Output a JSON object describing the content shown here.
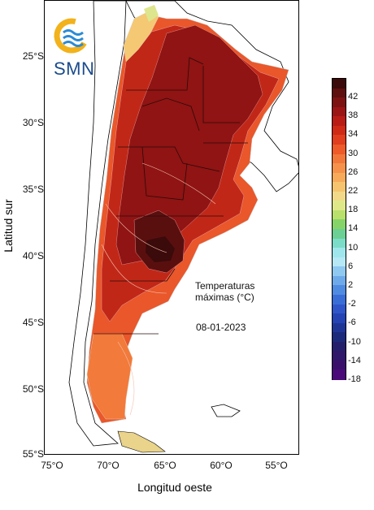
{
  "map": {
    "title_line1": "Temperaturas",
    "title_line2": "máximas (°C)",
    "date": "08-01-2023",
    "x_axis_title": "Longitud oeste",
    "y_axis_title": "Latitud sur",
    "lat_ticks": [
      "25°S",
      "30°S",
      "35°S",
      "40°S",
      "45°S",
      "50°S",
      "55°S"
    ],
    "lon_ticks": [
      "75°O",
      "70°O",
      "65°O",
      "60°O",
      "55°O"
    ],
    "logo_text": "SMN"
  },
  "colorbar": {
    "labels": [
      "42",
      "38",
      "34",
      "30",
      "26",
      "22",
      "18",
      "14",
      "10",
      "6",
      "2",
      "-2",
      "-6",
      "-10",
      "-14",
      "-18"
    ],
    "colors": [
      "#3b0a0a",
      "#5e0f0f",
      "#7d1212",
      "#9b1515",
      "#b81c14",
      "#cf2a16",
      "#e03e1e",
      "#ee5a2a",
      "#f2773a",
      "#f5914b",
      "#f6aa5a",
      "#f6c46e",
      "#f2d98a",
      "#dfe889",
      "#b8e06a",
      "#86d469",
      "#6ccf93",
      "#7bdcc8",
      "#9ee6ec",
      "#b6e8f6",
      "#8fc8f0",
      "#6eaaea",
      "#4f8be0",
      "#3a6dd6",
      "#2f55c8",
      "#2543b2",
      "#1f3596",
      "#1c2a7c",
      "#241f6b",
      "#2f176a",
      "#3a0f6c",
      "#4a0a78"
    ]
  }
}
